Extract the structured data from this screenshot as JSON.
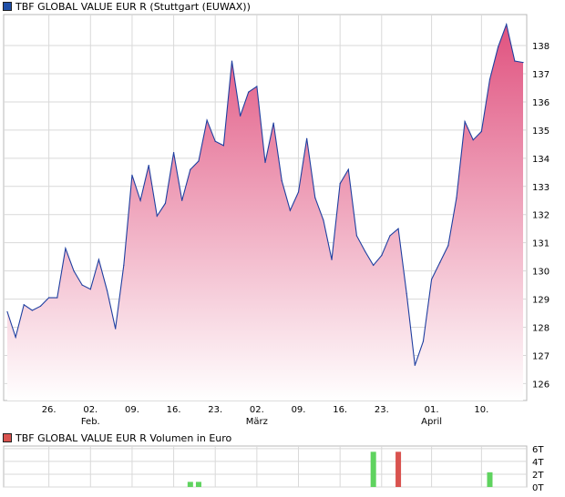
{
  "price_legend": {
    "label": "TBF GLOBAL VALUE EUR R (Stuttgart (EUWAX))",
    "color": "#1f4fa8"
  },
  "volume_legend": {
    "label": "TBF GLOBAL VALUE EUR R Volumen in Euro",
    "color": "#d9534f"
  },
  "chart_data": [
    {
      "type": "area",
      "title": "",
      "series": [
        {
          "values": [
            128.55,
            127.65,
            128.8,
            128.6,
            128.75,
            129.05,
            129.05,
            130.8,
            130.0,
            129.5,
            129.35,
            130.4,
            129.3,
            127.95,
            130.2,
            133.4,
            132.5,
            133.75,
            131.95,
            132.4,
            134.2,
            132.5,
            133.6,
            133.9,
            135.35,
            134.6,
            134.45,
            137.45,
            135.5,
            136.35,
            136.55,
            133.85,
            135.25,
            133.2,
            132.15,
            132.8,
            134.7,
            132.6,
            131.8,
            130.4,
            133.1,
            133.6,
            131.25,
            130.7,
            130.2,
            130.55,
            131.25,
            131.5,
            129.2,
            126.65,
            127.5,
            129.7,
            130.3,
            130.9,
            132.6,
            135.3,
            134.65,
            134.95,
            136.8,
            137.95,
            138.75,
            137.45,
            137.4
          ]
        }
      ],
      "x_ticks": [
        {
          "label": "26.",
          "index": 5
        },
        {
          "label": "02.",
          "index": 10
        },
        {
          "label": "09.",
          "index": 15
        },
        {
          "label": "16.",
          "index": 20
        },
        {
          "label": "23.",
          "index": 25
        },
        {
          "label": "02.",
          "index": 30
        },
        {
          "label": "09.",
          "index": 35
        },
        {
          "label": "16.",
          "index": 40
        },
        {
          "label": "23.",
          "index": 45
        },
        {
          "label": "01.",
          "index": 51
        },
        {
          "label": "10.",
          "index": 57
        }
      ],
      "month_labels": [
        {
          "label": "Feb.",
          "index": 10
        },
        {
          "label": "März",
          "index": 30
        },
        {
          "label": "April",
          "index": 51
        }
      ],
      "y_ticks": [
        126,
        127,
        128,
        129,
        130,
        131,
        132,
        133,
        134,
        135,
        136,
        137,
        138
      ],
      "ylim": [
        125.4,
        139.1
      ],
      "grid": true,
      "colors": {
        "line": "#1f3fa0",
        "fill_top": "#e0527f",
        "fill_bottom": "#ffffff"
      }
    },
    {
      "type": "bar",
      "title": "",
      "unit": "T",
      "values": [
        {
          "index": 22,
          "value": 0.8,
          "color": "#5fd35f"
        },
        {
          "index": 23,
          "value": 0.8,
          "color": "#5fd35f"
        },
        {
          "index": 44,
          "value": 5.5,
          "color": "#5fd35f"
        },
        {
          "index": 47,
          "value": 5.5,
          "color": "#d9534f"
        },
        {
          "index": 58,
          "value": 2.3,
          "color": "#5fd35f"
        }
      ],
      "y_ticks": [
        {
          "label": "0T",
          "value": 0
        },
        {
          "label": "2T",
          "value": 2
        },
        {
          "label": "4T",
          "value": 4
        },
        {
          "label": "6T",
          "value": 6
        }
      ],
      "ylim": [
        0,
        6.4
      ],
      "grid": true
    }
  ]
}
